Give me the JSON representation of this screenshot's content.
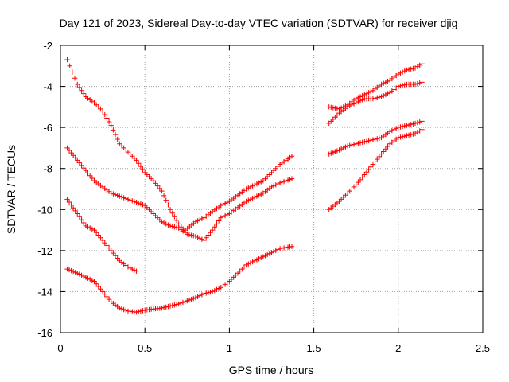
{
  "chart_data": {
    "type": "scatter",
    "title": "Day 121 of 2023, Sidereal Day-to-day VTEC variation (SDTVAR) for receiver djig",
    "xlabel": "GPS time / hours",
    "ylabel": "SDTVAR / TECUs",
    "xlim": [
      0,
      2.5
    ],
    "ylim": [
      -16,
      -2
    ],
    "xticks": [
      0,
      0.5,
      1,
      1.5,
      2,
      2.5
    ],
    "xtick_labels": [
      "0",
      "0.5",
      "1",
      "1.5",
      "2",
      "2.5"
    ],
    "yticks": [
      -16,
      -14,
      -12,
      -10,
      -8,
      -6,
      -4,
      -2
    ],
    "ytick_labels": [
      "-16",
      "-14",
      "-12",
      "-10",
      "-8",
      "-6",
      "-4",
      "-2"
    ],
    "grid": true,
    "marker": "+",
    "marker_color": "#ff0000",
    "series": [
      {
        "x": [
          0.04,
          0.07,
          0.1,
          0.15,
          0.2,
          0.25,
          0.3,
          0.35,
          0.4,
          0.45,
          0.5,
          0.55,
          0.6,
          0.65,
          0.7,
          0.73
        ],
        "y": [
          -2.7,
          -3.3,
          -3.9,
          -4.5,
          -4.8,
          -5.2,
          -5.9,
          -6.8,
          -7.2,
          -7.6,
          -8.2,
          -8.6,
          -9.1,
          -10.0,
          -10.7,
          -11.0
        ]
      },
      {
        "x": [
          0.04,
          0.1,
          0.2,
          0.3,
          0.4,
          0.5,
          0.55,
          0.6,
          0.65,
          0.7,
          0.75,
          0.8,
          0.85,
          0.9,
          0.95,
          1.0,
          1.05,
          1.1,
          1.15,
          1.2,
          1.25,
          1.3,
          1.37
        ],
        "y": [
          -7.0,
          -7.6,
          -8.6,
          -9.2,
          -9.5,
          -9.8,
          -10.2,
          -10.6,
          -10.8,
          -10.9,
          -11.2,
          -11.3,
          -11.5,
          -11.0,
          -10.4,
          -10.2,
          -9.9,
          -9.6,
          -9.4,
          -9.2,
          -8.9,
          -8.7,
          -8.5
        ]
      },
      {
        "x": [
          0.04,
          0.1,
          0.15,
          0.2,
          0.25,
          0.3,
          0.35,
          0.4,
          0.45
        ],
        "y": [
          -9.5,
          -10.2,
          -10.8,
          -11.0,
          -11.5,
          -12.0,
          -12.5,
          -12.8,
          -13.0
        ]
      },
      {
        "x": [
          0.04,
          0.1,
          0.15,
          0.2,
          0.25,
          0.3,
          0.35,
          0.4,
          0.45,
          0.5,
          0.6,
          0.7,
          0.8,
          0.85,
          0.9,
          0.95,
          1.0,
          1.05,
          1.1,
          1.15,
          1.2,
          1.25,
          1.3,
          1.37
        ],
        "y": [
          -12.9,
          -13.1,
          -13.3,
          -13.5,
          -14.0,
          -14.5,
          -14.8,
          -14.95,
          -15.0,
          -14.9,
          -14.8,
          -14.6,
          -14.3,
          -14.1,
          -14.0,
          -13.8,
          -13.5,
          -13.1,
          -12.7,
          -12.5,
          -12.3,
          -12.1,
          -11.9,
          -11.8
        ]
      },
      {
        "x": [
          0.74,
          0.8,
          0.85,
          0.9,
          0.95,
          1.0,
          1.05,
          1.1,
          1.15,
          1.2,
          1.25,
          1.3,
          1.37
        ],
        "y": [
          -11.0,
          -10.6,
          -10.4,
          -10.1,
          -9.8,
          -9.6,
          -9.3,
          -9.0,
          -8.8,
          -8.6,
          -8.2,
          -7.8,
          -7.4
        ]
      },
      {
        "x": [
          1.59,
          1.65,
          1.7,
          1.75,
          1.8,
          1.85,
          1.9,
          1.95,
          2.0,
          2.05,
          2.1,
          2.14
        ],
        "y": [
          -5.0,
          -5.1,
          -4.9,
          -4.6,
          -4.4,
          -4.2,
          -3.9,
          -3.7,
          -3.4,
          -3.2,
          -3.1,
          -2.9
        ]
      },
      {
        "x": [
          1.59,
          1.65,
          1.7,
          1.75,
          1.8,
          1.85,
          1.9,
          1.95,
          2.0,
          2.05,
          2.1,
          2.14
        ],
        "y": [
          -5.8,
          -5.3,
          -5.0,
          -4.8,
          -4.6,
          -4.6,
          -4.5,
          -4.3,
          -4.0,
          -3.9,
          -3.9,
          -3.8
        ]
      },
      {
        "x": [
          1.59,
          1.65,
          1.7,
          1.75,
          1.8,
          1.85,
          1.9,
          1.95,
          2.0,
          2.05,
          2.1,
          2.14
        ],
        "y": [
          -7.3,
          -7.1,
          -6.9,
          -6.8,
          -6.7,
          -6.6,
          -6.5,
          -6.2,
          -6.0,
          -5.9,
          -5.8,
          -5.7
        ]
      },
      {
        "x": [
          1.59,
          1.65,
          1.7,
          1.75,
          1.8,
          1.85,
          1.9,
          1.95,
          2.0,
          2.05,
          2.1,
          2.14
        ],
        "y": [
          -10.0,
          -9.6,
          -9.2,
          -8.8,
          -8.3,
          -7.8,
          -7.3,
          -6.8,
          -6.5,
          -6.4,
          -6.3,
          -6.1
        ]
      }
    ]
  }
}
